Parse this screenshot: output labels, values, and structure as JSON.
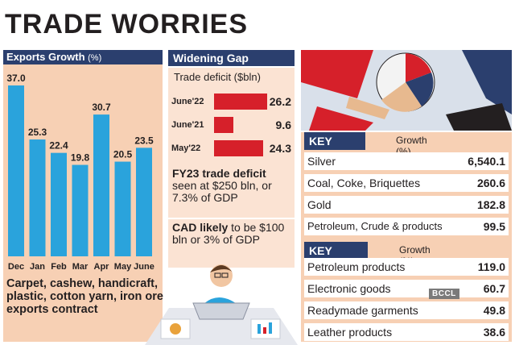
{
  "title": "TRADE WORRIES",
  "chart_data": [
    {
      "type": "bar",
      "title": "Exports Growth",
      "unit": "(%)",
      "categories": [
        "Dec",
        "Jan",
        "Feb",
        "Mar",
        "Apr",
        "May",
        "June"
      ],
      "values": [
        37.0,
        25.3,
        22.4,
        19.8,
        30.7,
        20.5,
        23.5
      ],
      "value_labels": [
        "37.0",
        "25.3",
        "22.4",
        "19.8",
        "30.7",
        "20.5",
        "23.5"
      ],
      "ylim": [
        0,
        37
      ],
      "bar_color": "#2aa3dc"
    },
    {
      "type": "bar",
      "orientation": "horizontal",
      "title": "Widening Gap",
      "subtitle": "Trade deficit ($bln)",
      "categories": [
        "June'22",
        "June'21",
        "May'22"
      ],
      "values": [
        26.2,
        9.6,
        24.3
      ],
      "value_labels": [
        "26.2",
        "9.6",
        "24.3"
      ],
      "bar_color": "#d6202a"
    }
  ],
  "exports_note": "Carpet, cashew, handicraft, plastic, cotton yarn, iron ore exports contract",
  "notes": [
    {
      "bold": "FY23 trade deficit",
      "rest": " seen at $250 bln, or 7.3% of GDP"
    },
    {
      "bold": "CAD likely",
      "rest": " to be $100 bln or 3% of GDP"
    }
  ],
  "key_imports": {
    "label": "KEY IMPORTS",
    "growth_label": "Growth (%)",
    "rows": [
      {
        "name": "Silver",
        "value": "6,540.1"
      },
      {
        "name": "Coal, Coke, Briquettes",
        "value": "260.6"
      },
      {
        "name": "Gold",
        "value": "182.8"
      },
      {
        "name": "Petroleum, Crude & products",
        "value": "99.5"
      }
    ]
  },
  "key_exports": {
    "label": "KEY EXPORTS",
    "growth_label": "Growth (%)",
    "rows": [
      {
        "name": "Petroleum products",
        "value": "119.0"
      },
      {
        "name": "Electronic goods",
        "value": "60.7"
      },
      {
        "name": "Readymade garments",
        "value": "49.8"
      },
      {
        "name": "Leather products",
        "value": "38.6"
      }
    ]
  },
  "watermark": "BCCL",
  "colors": {
    "navy": "#2b3f6e",
    "peach": "#f7d0b4",
    "red": "#d6202a",
    "blue": "#2aa3dc"
  }
}
